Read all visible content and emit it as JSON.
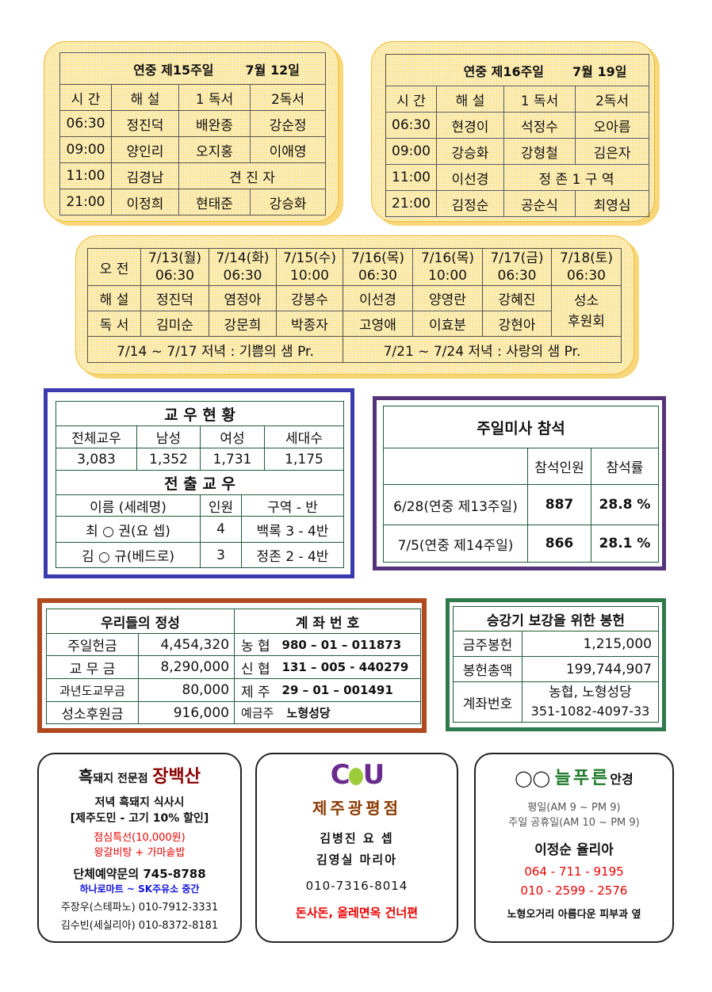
{
  "week15": {
    "title": "연중  제15주일",
    "date": "7월  12일",
    "headers": [
      "시 간",
      "해 설",
      "1 독서",
      "2독서"
    ],
    "rows": [
      [
        "06:30",
        "정진덕",
        "배완종",
        "강순정"
      ],
      [
        "09:00",
        "양인리",
        "오지홍",
        "이애영"
      ],
      [
        "11:00",
        "김경남",
        "견 진 자",
        ""
      ],
      [
        "21:00",
        "이정희",
        "현태준",
        "강승화"
      ]
    ]
  },
  "week16": {
    "title": "연중  제16주일",
    "date": "7월  19일",
    "headers": [
      "시 간",
      "해 설",
      "1 독서",
      "2독서"
    ],
    "rows": [
      [
        "06:30",
        "현경이",
        "석정수",
        "오아름"
      ],
      [
        "09:00",
        "강승화",
        "강형철",
        "김은자"
      ],
      [
        "11:00",
        "이선경",
        "정 존 1 구 역",
        ""
      ],
      [
        "21:00",
        "김정순",
        "공순식",
        "최영심"
      ]
    ]
  },
  "weekday": {
    "row_labels": [
      "오 전",
      "해 설",
      "독 서"
    ],
    "days": [
      {
        "date": "7/13(월)",
        "time": "06:30",
        "commentary": "정진덕",
        "reader": "김미순"
      },
      {
        "date": "7/14(화)",
        "time": "06:30",
        "commentary": "염정아",
        "reader": "강문희"
      },
      {
        "date": "7/15(수)",
        "time": "10:00",
        "commentary": "강봉수",
        "reader": "박종자"
      },
      {
        "date": "7/16(목)",
        "time": "06:30",
        "commentary": "이선경",
        "reader": "고영애"
      },
      {
        "date": "7/16(목)",
        "time": "10:00",
        "commentary": "양영란",
        "reader": "이효분"
      },
      {
        "date": "7/17(금)",
        "time": "06:30",
        "commentary": "강혜진",
        "reader": "강현아"
      },
      {
        "date": "7/18(토)",
        "time": "06:30",
        "merged": "성소\n후원회"
      }
    ],
    "evening": [
      "7/14 ~ 7/17 저녁 : 기쁨의 샘 Pr.",
      "7/21 ~ 7/24 저녁 : 사랑의 샘 Pr."
    ]
  },
  "parish": {
    "title": "교 우 현 황",
    "headers": [
      "전체교우",
      "남성",
      "여성",
      "세대수"
    ],
    "values": [
      "3,083",
      "1,352",
      "1,731",
      "1,175"
    ],
    "transfer_title": "전 출 교 우",
    "transfer_headers": [
      "이름 (세례명)",
      "인원",
      "구역 - 반"
    ],
    "transfers": [
      [
        "최 ○ 권(요 셉)",
        "4",
        "백록 3 - 4반"
      ],
      [
        "김 ○ 규(베드로)",
        "3",
        "정존 2 - 4반"
      ]
    ]
  },
  "attendance": {
    "title": "주일미사 참석",
    "headers": [
      "",
      "참석인원",
      "참석률"
    ],
    "rows": [
      [
        "6/28(연중 제13주일)",
        "887",
        "28.8 %"
      ],
      [
        "7/5(연중 제14주일)",
        "866",
        "28.1 %"
      ]
    ]
  },
  "offering": {
    "title": "우리들의 정성",
    "account_title": "계 좌 번 호",
    "rows": [
      [
        "주일헌금",
        "4,454,320",
        "농 협",
        "980 – 01 – 011873"
      ],
      [
        "교 무 금",
        "8,290,000",
        "신 협",
        "131 – 005 - 440279"
      ],
      [
        "과년도교무금",
        "80,000",
        "제 주",
        "29 – 01 – 001491"
      ],
      [
        "성소후원금",
        "916,000",
        "예금주",
        "노형성당"
      ]
    ]
  },
  "building": {
    "title": "승강기 보강을 위한 봉헌",
    "rows": [
      [
        "금주봉헌",
        "1,215,000"
      ],
      [
        "봉헌총액",
        "199,744,907"
      ]
    ],
    "account_label": "계좌번호",
    "account_bank": "농협, 노형성당",
    "account_number": "351-1082-4097-33"
  },
  "ad1": {
    "title_a": "흑",
    "title_b": "돼지 전문점",
    "title_c": "장백산",
    "line1": "저녁 흑돼지 식사시",
    "line2": "[제주도민 - 고기 10% 할인]",
    "special1": "점심특선(10,000원)",
    "special2": "왕갈비탕 + 가마솥밥",
    "reserve": "단체예약문의  745-8788",
    "location": "하나로마트 ~ SK주유소 중간",
    "contact1": "주장우(스테파노) 010-7912-3331",
    "contact2": "김수빈(세실리아) 010-8372-8181"
  },
  "ad2": {
    "logo": "CU",
    "store": "제주광평점",
    "owner1": "김병진 요   셉",
    "owner2": "김영실 마리아",
    "phone": "010-7316-8014",
    "location": "돈사돈, 올레면옥 건너편"
  },
  "ad3": {
    "brand": "늘푸른",
    "brand_suffix": "안경",
    "hours1": "평일(AM 9 ~ PM 9)",
    "hours2": "주일 공휴일(AM 10 ~ PM 9)",
    "owner": "이정순 율리아",
    "phone1": "064 - 711 - 9195",
    "phone2": "010 - 2599 - 2576",
    "location": "노형오거리 아름다운 피부과 옆"
  },
  "colors": {
    "blue_frame": "#3b3bb0",
    "purple_frame": "#55337a",
    "brown_frame": "#b04a1e",
    "green_frame": "#2e7a4a",
    "ad_red": "#8b0000",
    "cu_purple": "#6a2b8f"
  }
}
